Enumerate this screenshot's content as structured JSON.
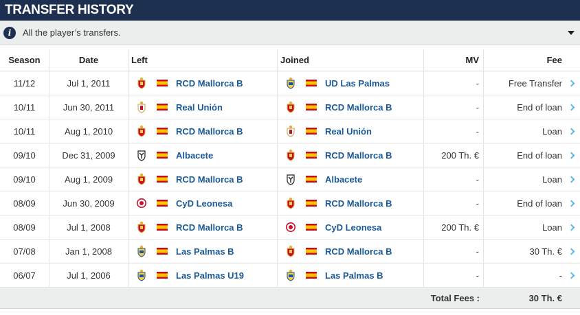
{
  "header": {
    "title": "TRANSFER HISTORY"
  },
  "info": {
    "text": "All the player’s transfers."
  },
  "columns": {
    "season": "Season",
    "date": "Date",
    "left": "Left",
    "joined": "Joined",
    "mv": "MV",
    "fee": "Fee"
  },
  "transfers": [
    {
      "season": "11/12",
      "date": "Jul 1, 2011",
      "left": "RCD Mallorca B",
      "left_crest": "mallorca",
      "joined": "UD Las Palmas",
      "joined_crest": "laspalmas",
      "mv": "-",
      "fee": "Free Transfer"
    },
    {
      "season": "10/11",
      "date": "Jun 30, 2011",
      "left": "Real Unión",
      "left_crest": "union",
      "joined": "RCD Mallorca B",
      "joined_crest": "mallorca",
      "mv": "-",
      "fee": "End of loan"
    },
    {
      "season": "10/11",
      "date": "Aug 1, 2010",
      "left": "RCD Mallorca B",
      "left_crest": "mallorca",
      "joined": "Real Unión",
      "joined_crest": "union",
      "mv": "-",
      "fee": "Loan"
    },
    {
      "season": "09/10",
      "date": "Dec 31, 2009",
      "left": "Albacete",
      "left_crest": "albacete",
      "joined": "RCD Mallorca B",
      "joined_crest": "mallorca",
      "mv": "200 Th. €",
      "fee": "End of loan"
    },
    {
      "season": "09/10",
      "date": "Aug 1, 2009",
      "left": "RCD Mallorca B",
      "left_crest": "mallorca",
      "joined": "Albacete",
      "joined_crest": "albacete",
      "mv": "-",
      "fee": "Loan"
    },
    {
      "season": "08/09",
      "date": "Jun 30, 2009",
      "left": "CyD Leonesa",
      "left_crest": "leonesa",
      "joined": "RCD Mallorca B",
      "joined_crest": "mallorca",
      "mv": "-",
      "fee": "End of loan"
    },
    {
      "season": "08/09",
      "date": "Jul 1, 2008",
      "left": "RCD Mallorca B",
      "left_crest": "mallorca",
      "joined": "CyD Leonesa",
      "joined_crest": "leonesa",
      "mv": "200 Th. €",
      "fee": "Loan"
    },
    {
      "season": "07/08",
      "date": "Jan 1, 2008",
      "left": "Las Palmas B",
      "left_crest": "laspalmas",
      "joined": "RCD Mallorca B",
      "joined_crest": "mallorca",
      "mv": "-",
      "fee": "30 Th. €"
    },
    {
      "season": "06/07",
      "date": "Jul 1, 2006",
      "left": "Las Palmas U19",
      "left_crest": "laspalmas",
      "joined": "Las Palmas B",
      "joined_crest": "laspalmas",
      "mv": "-",
      "fee": "-"
    }
  ],
  "total": {
    "label": "Total Fees :",
    "value": "30 Th. €"
  },
  "colors": {
    "header_bg": "#1d3050",
    "link": "#1a5a96",
    "chevron": "#5bb8e4",
    "flag_red": "#c60b1e",
    "flag_yellow": "#ffc400"
  }
}
